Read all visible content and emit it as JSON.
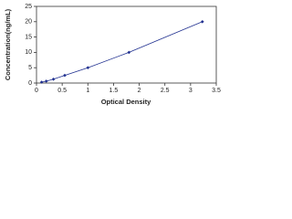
{
  "chart_data": {
    "type": "scatter",
    "xlabel": "Optical Density",
    "ylabel": "Concentration(ng/mL)",
    "x": [
      0.1,
      0.19,
      0.33,
      0.55,
      1.0,
      1.8,
      3.23
    ],
    "series": [
      {
        "color": "#1f2f8f",
        "values": [
          0.3,
          0.6,
          1.25,
          2.5,
          5,
          10,
          20
        ]
      }
    ],
    "xlim": [
      0,
      3.5
    ],
    "xticks": [
      0,
      0.5,
      1,
      1.5,
      2,
      2.5,
      3,
      3.5
    ],
    "ylim": [
      0,
      25
    ],
    "yticks": [
      0,
      5,
      10,
      15,
      20,
      25
    ]
  }
}
